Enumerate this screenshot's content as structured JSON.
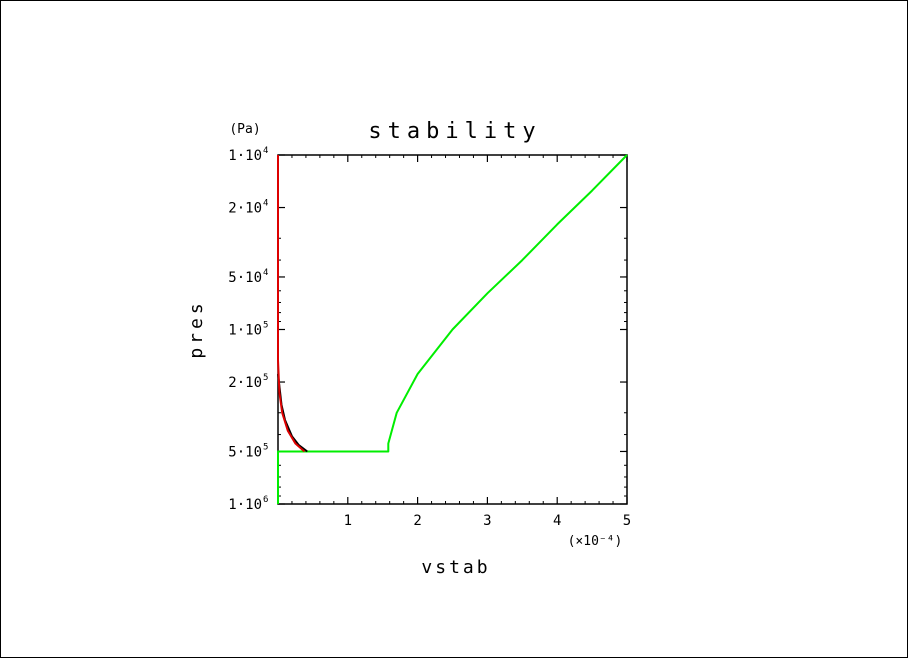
{
  "chart_data": {
    "type": "line",
    "title": "stability",
    "xlabel": "vstab",
    "ylabel": "pres",
    "y_unit": "(Pa)",
    "x_multiplier": "(×10⁻⁴)",
    "y_scale": "log",
    "y_reversed": true,
    "xlim": [
      0,
      5
    ],
    "ylim": [
      10000,
      1000000
    ],
    "x_ticks": [
      {
        "value": 1,
        "label": "1"
      },
      {
        "value": 2,
        "label": "2"
      },
      {
        "value": 3,
        "label": "3"
      },
      {
        "value": 4,
        "label": "4"
      },
      {
        "value": 5,
        "label": "5"
      }
    ],
    "y_ticks": [
      {
        "value": 10000,
        "mant": "1·10",
        "exp": "4"
      },
      {
        "value": 20000,
        "mant": "2·10",
        "exp": "4"
      },
      {
        "value": 50000,
        "mant": "5·10",
        "exp": "4"
      },
      {
        "value": 100000,
        "mant": "1·10",
        "exp": "5"
      },
      {
        "value": 200000,
        "mant": "2·10",
        "exp": "5"
      },
      {
        "value": 500000,
        "mant": "5·10",
        "exp": "5"
      },
      {
        "value": 1000000,
        "mant": "1·10",
        "exp": "6"
      }
    ],
    "grid": false,
    "series": [
      {
        "color": "#00ee00",
        "points": [
          [
            0,
            1000000
          ],
          [
            0,
            500000
          ],
          [
            1.58,
            500000
          ],
          [
            1.58,
            450000
          ],
          [
            1.7,
            300000
          ],
          [
            2.0,
            180000
          ],
          [
            2.5,
            100000
          ],
          [
            3.0,
            62000
          ],
          [
            3.5,
            40000
          ],
          [
            4.0,
            25000
          ],
          [
            4.5,
            16000
          ],
          [
            5.0,
            10000
          ]
        ]
      },
      {
        "color": "#000000",
        "points": [
          [
            0,
            180000
          ],
          [
            0.05,
            270000
          ],
          [
            0.1,
            330000
          ],
          [
            0.2,
            410000
          ],
          [
            0.3,
            460000
          ],
          [
            0.42,
            500000
          ]
        ]
      },
      {
        "color": "#dd0000",
        "points": [
          [
            0,
            10000
          ],
          [
            0,
            150000
          ],
          [
            0.02,
            230000
          ],
          [
            0.06,
            300000
          ],
          [
            0.14,
            380000
          ],
          [
            0.25,
            450000
          ],
          [
            0.38,
            500000
          ]
        ]
      }
    ]
  }
}
